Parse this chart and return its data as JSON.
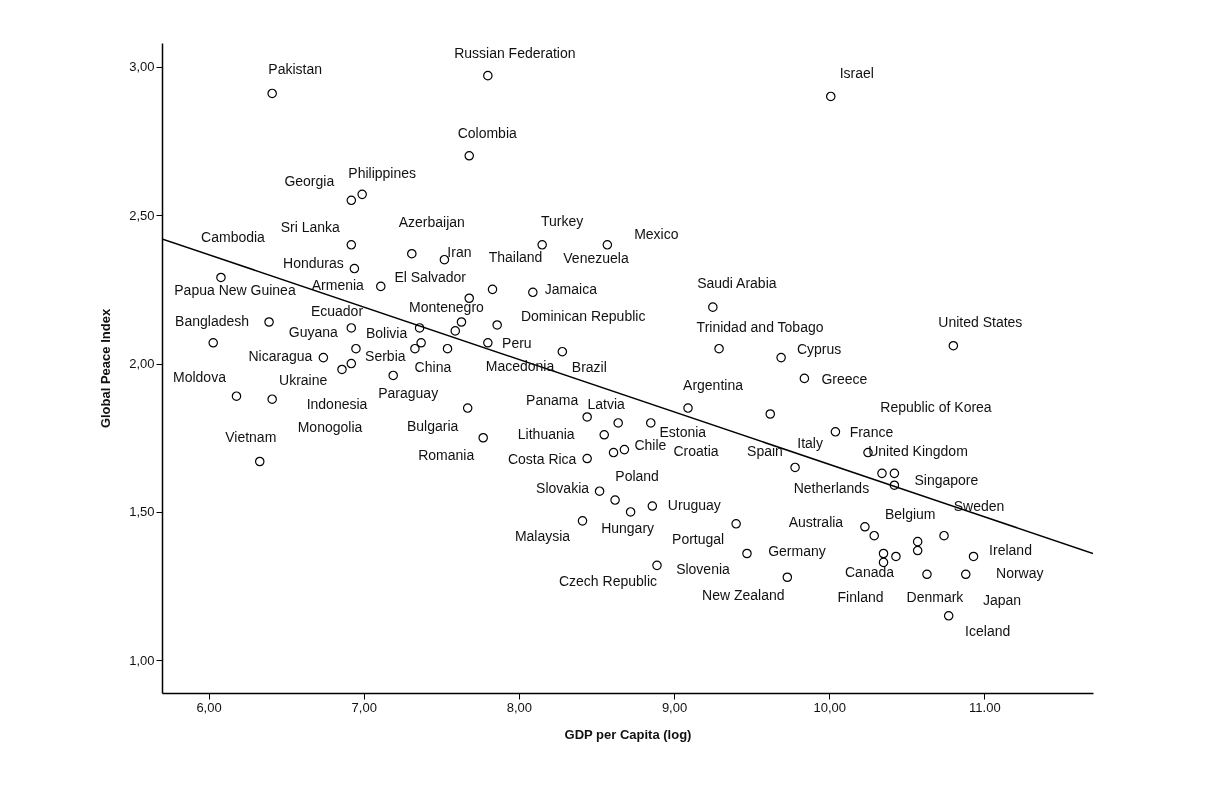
{
  "chart_data": {
    "type": "scatter",
    "xlabel": "GDP per Capita (log)",
    "ylabel": "Global Peace Index",
    "xlim": [
      5.7,
      11.7
    ],
    "ylim": [
      0.89,
      3.08
    ],
    "xticks": [
      {
        "value": 6,
        "label": "6,00"
      },
      {
        "value": 7,
        "label": "7,00"
      },
      {
        "value": 8,
        "label": "8,00"
      },
      {
        "value": 9,
        "label": "9,00"
      },
      {
        "value": 10,
        "label": "10,00"
      },
      {
        "value": 11,
        "label": "11.00"
      }
    ],
    "yticks": [
      {
        "value": 1,
        "label": "1,00"
      },
      {
        "value": 1.5,
        "label": "1,50"
      },
      {
        "value": 2,
        "label": "2,00"
      },
      {
        "value": 2.5,
        "label": "2,50"
      },
      {
        "value": 3,
        "label": "3,00"
      }
    ],
    "series": [
      {
        "type": "scatter",
        "color": "#000000",
        "marker": "circle",
        "x": [
          6.41,
          7.8,
          7.68,
          6.92,
          6.99,
          6.92,
          6.94,
          7.31,
          7.52,
          6.08,
          6.03,
          7.11,
          7.68,
          7.83,
          7.63,
          7.59,
          7.36,
          6.92,
          6.95,
          6.74,
          6.92,
          6.86,
          7.19,
          6.39,
          6.18,
          6.41,
          6.33,
          7.33,
          7.37,
          7.54,
          7.86,
          7.8,
          8.28,
          8.09,
          7.67,
          7.77,
          8.15,
          8.57,
          10.01,
          9.25,
          9.29,
          10.8,
          9.69,
          9.84,
          9.09,
          9.62,
          8.44,
          8.64,
          8.85,
          8.55,
          8.68,
          8.61,
          8.44,
          10.34,
          9.78,
          10.04,
          10.25,
          10.42,
          10.42,
          10.23,
          10.29,
          10.74,
          10.93,
          10.88,
          10.35,
          10.35,
          10.63,
          10.77,
          10.43,
          10.57,
          10.57,
          9.47,
          9.4,
          8.89,
          9.73,
          8.86,
          8.52,
          8.62,
          8.72,
          8.41
        ],
        "values": [
          2.91,
          2.97,
          2.7,
          2.55,
          2.57,
          2.4,
          2.32,
          2.37,
          2.35,
          2.29,
          2.07,
          2.26,
          2.22,
          2.25,
          2.14,
          2.11,
          2.12,
          2.12,
          2.05,
          2.02,
          2.0,
          1.98,
          1.96,
          2.14,
          1.89,
          1.88,
          1.67,
          2.05,
          2.07,
          2.05,
          2.13,
          2.07,
          2.04,
          2.24,
          1.85,
          1.75,
          2.4,
          2.4,
          2.9,
          2.19,
          2.05,
          2.06,
          2.02,
          1.95,
          1.85,
          1.83,
          1.82,
          1.8,
          1.8,
          1.76,
          1.71,
          1.7,
          1.68,
          1.63,
          1.65,
          1.77,
          1.7,
          1.63,
          1.59,
          1.45,
          1.42,
          1.42,
          1.35,
          1.29,
          1.36,
          1.33,
          1.29,
          1.15,
          1.35,
          1.4,
          1.37,
          1.36,
          1.46,
          1.32,
          1.28,
          1.52,
          1.57,
          1.54,
          1.5,
          1.47
        ],
        "value_labels": [
          "Pakistan",
          "Russian Federation",
          "Colombia",
          "Georgia",
          "Philippines",
          "Sri Lanka",
          "Honduras",
          "Azerbaijan",
          "Iran",
          "Papua New Guinea",
          null,
          "Armenia",
          "El Salvador",
          "Thailand",
          "Montenegro",
          null,
          "Bolivia",
          "Guyana",
          null,
          "Nicaragua",
          "Serbia",
          "Indonesia",
          "Paraguay",
          "Bangladesh",
          "Moldova",
          "Ukraine",
          "Vietnam",
          "China",
          null,
          null,
          "Dominican Republic",
          "Peru",
          "Brazil",
          "Jamaica",
          "Bulgaria",
          "Romania",
          "Turkey",
          "Mexico",
          "Israel",
          "Saudi Arabia",
          "Trinidad and Tobago",
          "United States",
          "Cyprus",
          "Greece",
          "Argentina",
          null,
          "Panama",
          "Latvia",
          "Estonia",
          "Lithuania",
          "Chile",
          null,
          "Costa Rica",
          null,
          "Italy",
          "France",
          "United Kingdom",
          "Singapore",
          "Netherlands",
          "Australia",
          "Belgium",
          "Sweden",
          "Ireland",
          "Norway",
          "Canada",
          "Finland",
          "Denmark",
          "Iceland",
          null,
          null,
          null,
          "Germany",
          "Portugal",
          "Slovenia",
          "New Zealand",
          "Uruguay",
          "Slovakia",
          "Poland",
          "Hungary",
          "Malaysia"
        ]
      },
      {
        "type": "line",
        "color": "#000000",
        "line_style": "solid",
        "x": [
          5.7,
          11.7
        ],
        "values": [
          2.42,
          1.36
        ]
      }
    ],
    "annotations": [
      "Monogolia",
      "Venezuela",
      "Japan",
      "Czech Republic",
      "Cambodia",
      "Ecuador",
      "Macedonia",
      "Republic of Korea",
      "Croatia",
      "Spain"
    ]
  }
}
